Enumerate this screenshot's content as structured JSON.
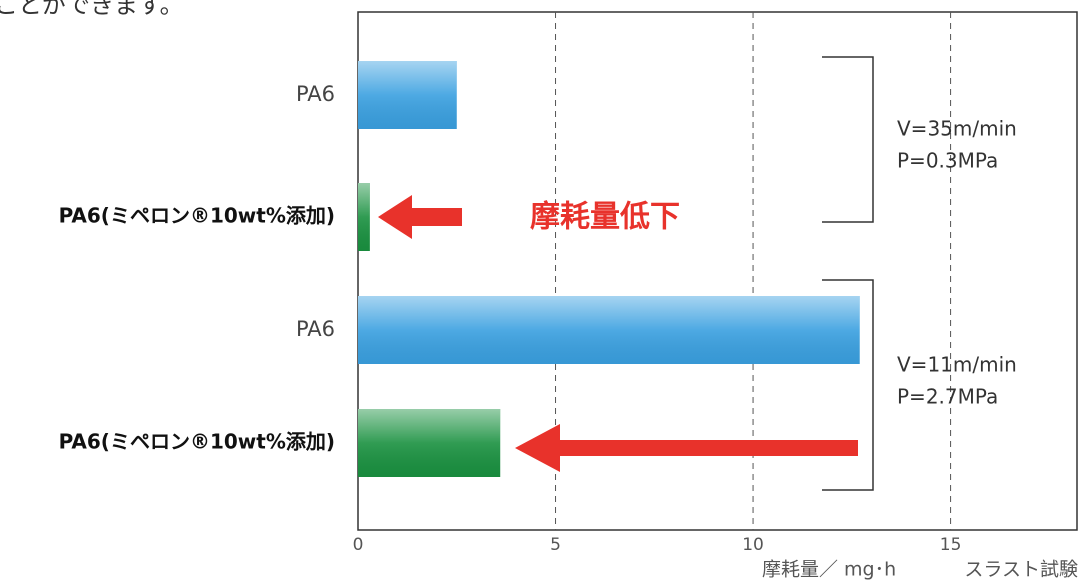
{
  "header": {
    "text": "ことができます。"
  },
  "chart_data": {
    "type": "bar",
    "orientation": "horizontal",
    "categories": [
      "PA6",
      "PA6(ミペロン®10wt%添加)",
      "PA6",
      "PA6(ミペロン®10wt%添加)"
    ],
    "values": [
      2.5,
      0.3,
      12.7,
      3.6
    ],
    "colors": [
      "#3aa0e0",
      "#1a9140",
      "#3aa0e0",
      "#1a9140"
    ],
    "xlim": [
      0,
      18.2
    ],
    "xticks": [
      0,
      5,
      10,
      15
    ],
    "grid": true,
    "xlabel": "摩耗量／ mg･h",
    "test_label": "スラスト試験",
    "annotation": "摩耗量低下",
    "conditions": [
      [
        "V=35m/min",
        "P=0.3MPa"
      ],
      [
        "V=11m/min",
        "P=2.7MPa"
      ]
    ]
  }
}
